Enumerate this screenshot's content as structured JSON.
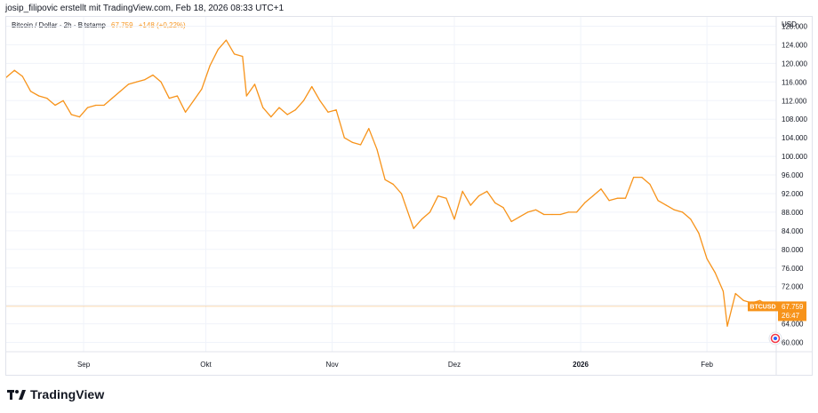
{
  "credit": "josip_filipovic erstellt mit TradingView.com, Feb 18, 2026 08:33 UTC+1",
  "legend": {
    "symbol": "Bitcoin / Dollar · 2h · Bitstamp",
    "price": "67.759",
    "change": "+148 (+0,22%)"
  },
  "price_axis": {
    "currency": "USD",
    "badge_symbol": "BTCUSD",
    "badge_price": "67.759",
    "badge_timer": "26:47"
  },
  "footer": {
    "brand": "TradingView"
  },
  "colors": {
    "line": "#f7931a",
    "badge": "#f7931a",
    "grid": "#f0f3fa",
    "text": "#131722"
  },
  "chart_data": {
    "type": "line",
    "title": "Bitcoin / Dollar · 2h · Bitstamp",
    "ylim": [
      58000,
      130000
    ],
    "y_ticks": [
      {
        "value": 60000,
        "label": "60.000"
      },
      {
        "value": 64000,
        "label": "64.000"
      },
      {
        "value": 68000,
        "label": "68.000"
      },
      {
        "value": 72000,
        "label": "72.000"
      },
      {
        "value": 76000,
        "label": "76.000"
      },
      {
        "value": 80000,
        "label": "80.000"
      },
      {
        "value": 84000,
        "label": "84.000"
      },
      {
        "value": 88000,
        "label": "88.000"
      },
      {
        "value": 92000,
        "label": "92.000"
      },
      {
        "value": 96000,
        "label": "96.000"
      },
      {
        "value": 100000,
        "label": "100.000"
      },
      {
        "value": 104000,
        "label": "104.000"
      },
      {
        "value": 108000,
        "label": "108.000"
      },
      {
        "value": 112000,
        "label": "112.000"
      },
      {
        "value": 116000,
        "label": "116.000"
      },
      {
        "value": 120000,
        "label": "120.000"
      },
      {
        "value": 124000,
        "label": "124.000"
      },
      {
        "value": 128000,
        "label": "128.000"
      }
    ],
    "xlim": [
      "2025-08-13",
      "2026-02-18"
    ],
    "x_ticks": [
      {
        "date": "2025-09-01",
        "label": "Sep",
        "bold": false
      },
      {
        "date": "2025-10-01",
        "label": "Okt",
        "bold": false
      },
      {
        "date": "2025-11-01",
        "label": "Nov",
        "bold": false
      },
      {
        "date": "2025-12-01",
        "label": "Dez",
        "bold": false
      },
      {
        "date": "2026-01-01",
        "label": "2026",
        "bold": true
      },
      {
        "date": "2026-02-01",
        "label": "Feb",
        "bold": false
      }
    ],
    "current_price": 67759,
    "series": [
      {
        "x": [
          "2025-08-13",
          "2025-08-15",
          "2025-08-17",
          "2025-08-19",
          "2025-08-21",
          "2025-08-23",
          "2025-08-25",
          "2025-08-27",
          "2025-08-29",
          "2025-08-31",
          "2025-09-02",
          "2025-09-04",
          "2025-09-06",
          "2025-09-08",
          "2025-09-10",
          "2025-09-12",
          "2025-09-14",
          "2025-09-16",
          "2025-09-18",
          "2025-09-20",
          "2025-09-22",
          "2025-09-24",
          "2025-09-26",
          "2025-09-28",
          "2025-09-30",
          "2025-10-02",
          "2025-10-04",
          "2025-10-06",
          "2025-10-08",
          "2025-10-10",
          "2025-10-11",
          "2025-10-13",
          "2025-10-15",
          "2025-10-17",
          "2025-10-19",
          "2025-10-21",
          "2025-10-23",
          "2025-10-25",
          "2025-10-27",
          "2025-10-29",
          "2025-10-31",
          "2025-11-02",
          "2025-11-04",
          "2025-11-06",
          "2025-11-08",
          "2025-11-10",
          "2025-11-12",
          "2025-11-14",
          "2025-11-16",
          "2025-11-18",
          "2025-11-20",
          "2025-11-21",
          "2025-11-23",
          "2025-11-25",
          "2025-11-27",
          "2025-11-29",
          "2025-12-01",
          "2025-12-03",
          "2025-12-05",
          "2025-12-07",
          "2025-12-09",
          "2025-12-11",
          "2025-12-13",
          "2025-12-15",
          "2025-12-17",
          "2025-12-19",
          "2025-12-21",
          "2025-12-23",
          "2025-12-25",
          "2025-12-27",
          "2025-12-29",
          "2025-12-31",
          "2026-01-02",
          "2026-01-04",
          "2026-01-06",
          "2026-01-08",
          "2026-01-10",
          "2026-01-12",
          "2026-01-14",
          "2026-01-16",
          "2026-01-18",
          "2026-01-20",
          "2026-01-22",
          "2026-01-24",
          "2026-01-26",
          "2026-01-28",
          "2026-01-30",
          "2026-02-01",
          "2026-02-03",
          "2026-02-05",
          "2026-02-06",
          "2026-02-08",
          "2026-02-10",
          "2026-02-12",
          "2026-02-14",
          "2026-02-16",
          "2026-02-18"
        ],
        "y": [
          117000,
          118500,
          117200,
          114000,
          113000,
          112500,
          111000,
          112000,
          109000,
          108500,
          110500,
          111000,
          111000,
          112500,
          114000,
          115500,
          116000,
          116500,
          117500,
          116000,
          112500,
          113000,
          109500,
          112000,
          114500,
          119500,
          123000,
          125000,
          122000,
          121500,
          113000,
          115500,
          110500,
          108500,
          110500,
          109000,
          110000,
          112000,
          115000,
          112000,
          109500,
          110000,
          104000,
          103000,
          102500,
          106000,
          101500,
          95000,
          94000,
          92000,
          87000,
          84500,
          86500,
          88000,
          91500,
          91000,
          86500,
          92500,
          89500,
          91500,
          92500,
          90000,
          89000,
          86000,
          87000,
          88000,
          88500,
          87500,
          87500,
          87500,
          88000,
          88000,
          90000,
          91500,
          93000,
          90500,
          91000,
          91000,
          95500,
          95500,
          94000,
          90500,
          89500,
          88500,
          88000,
          86500,
          83500,
          78000,
          75000,
          71000,
          63500,
          70500,
          69000,
          68500,
          69000,
          68000,
          67759
        ]
      }
    ]
  }
}
